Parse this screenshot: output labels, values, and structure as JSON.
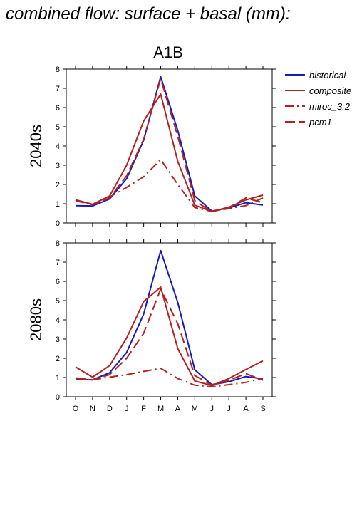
{
  "title": "combined flow: surface + basal (mm):",
  "chart_data": {
    "type": "line",
    "scenario": "A1B",
    "categories": [
      "O",
      "N",
      "D",
      "J",
      "F",
      "M",
      "A",
      "M",
      "J",
      "J",
      "A",
      "S"
    ],
    "ylim": [
      0,
      8
    ],
    "yticks": [
      0,
      1,
      2,
      3,
      4,
      5,
      6,
      7,
      8
    ],
    "legend": {
      "placement": "top-right",
      "entries": [
        "historical",
        "composite",
        "miroc_3.2",
        "pcm1"
      ]
    },
    "colors": {
      "historical": "#1a1ab8",
      "composite": "#b22222",
      "miroc_3.2": "#b22222",
      "pcm1": "#b22222"
    },
    "panels": [
      {
        "label": "2040s",
        "series": [
          {
            "name": "historical",
            "style": "solid",
            "values": [
              0.9,
              0.88,
              1.25,
              2.3,
              4.3,
              7.6,
              4.8,
              1.4,
              0.62,
              0.78,
              1.05,
              0.93
            ]
          },
          {
            "name": "composite",
            "style": "solid",
            "values": [
              1.2,
              0.97,
              1.4,
              3.0,
              5.3,
              6.7,
              3.2,
              0.92,
              0.6,
              0.82,
              1.2,
              1.45
            ]
          },
          {
            "name": "miroc_3.2",
            "style": "dashdot",
            "values": [
              1.15,
              0.95,
              1.35,
              1.85,
              2.4,
              3.3,
              2.0,
              0.8,
              0.6,
              0.75,
              0.9,
              1.3
            ]
          },
          {
            "name": "pcm1",
            "style": "dashed",
            "values": [
              1.2,
              0.95,
              1.3,
              2.45,
              4.35,
              7.5,
              4.5,
              1.15,
              0.58,
              0.8,
              1.3,
              1.05
            ]
          }
        ]
      },
      {
        "label": "2080s",
        "series": [
          {
            "name": "historical",
            "style": "solid",
            "values": [
              0.9,
              0.88,
              1.25,
              2.3,
              4.3,
              7.6,
              4.9,
              1.4,
              0.63,
              0.78,
              1.05,
              0.93
            ]
          },
          {
            "name": "composite",
            "style": "solid",
            "values": [
              1.55,
              1.02,
              1.62,
              3.05,
              4.95,
              5.7,
              2.5,
              0.82,
              0.58,
              0.95,
              1.42,
              1.87
            ]
          },
          {
            "name": "miroc_3.2",
            "style": "dashdot",
            "values": [
              0.95,
              0.88,
              1.02,
              1.15,
              1.32,
              1.48,
              0.95,
              0.6,
              0.52,
              0.63,
              0.75,
              0.97
            ]
          },
          {
            "name": "pcm1",
            "style": "dashed",
            "values": [
              0.98,
              0.88,
              1.15,
              2.0,
              3.3,
              5.6,
              3.8,
              1.1,
              0.6,
              0.85,
              1.2,
              0.86
            ]
          }
        ]
      }
    ]
  }
}
